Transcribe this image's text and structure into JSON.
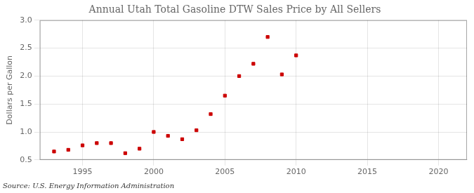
{
  "chart_data": {
    "type": "scatter",
    "title": "Annual Utah Total Gasoline DTW Sales Price by All Sellers",
    "ylabel": "Dollars per Gallon",
    "source": "Source: U.S. Energy Information Administration",
    "x": [
      1993,
      1994,
      1995,
      1996,
      1997,
      1998,
      1999,
      2000,
      2001,
      2002,
      2003,
      2004,
      2005,
      2006,
      2007,
      2008,
      2009,
      2010
    ],
    "values": [
      0.65,
      0.68,
      0.76,
      0.8,
      0.8,
      0.62,
      0.7,
      1.0,
      0.93,
      0.87,
      1.03,
      1.32,
      1.65,
      2.0,
      2.22,
      2.7,
      2.03,
      2.37
    ],
    "color": "#cc0000",
    "marker": "square",
    "xlim": [
      1992,
      2022
    ],
    "ylim": [
      0.5,
      3.0
    ],
    "xticks": [
      1995,
      2000,
      2005,
      2010,
      2015,
      2020
    ],
    "yticks": [
      0.5,
      {
        "value": 1.0,
        "label": "1.0"
      },
      1.5,
      {
        "value": 2.0,
        "label": "2.0"
      },
      2.5,
      {
        "value": 3.0,
        "label": "3.0"
      }
    ],
    "grid": true
  }
}
